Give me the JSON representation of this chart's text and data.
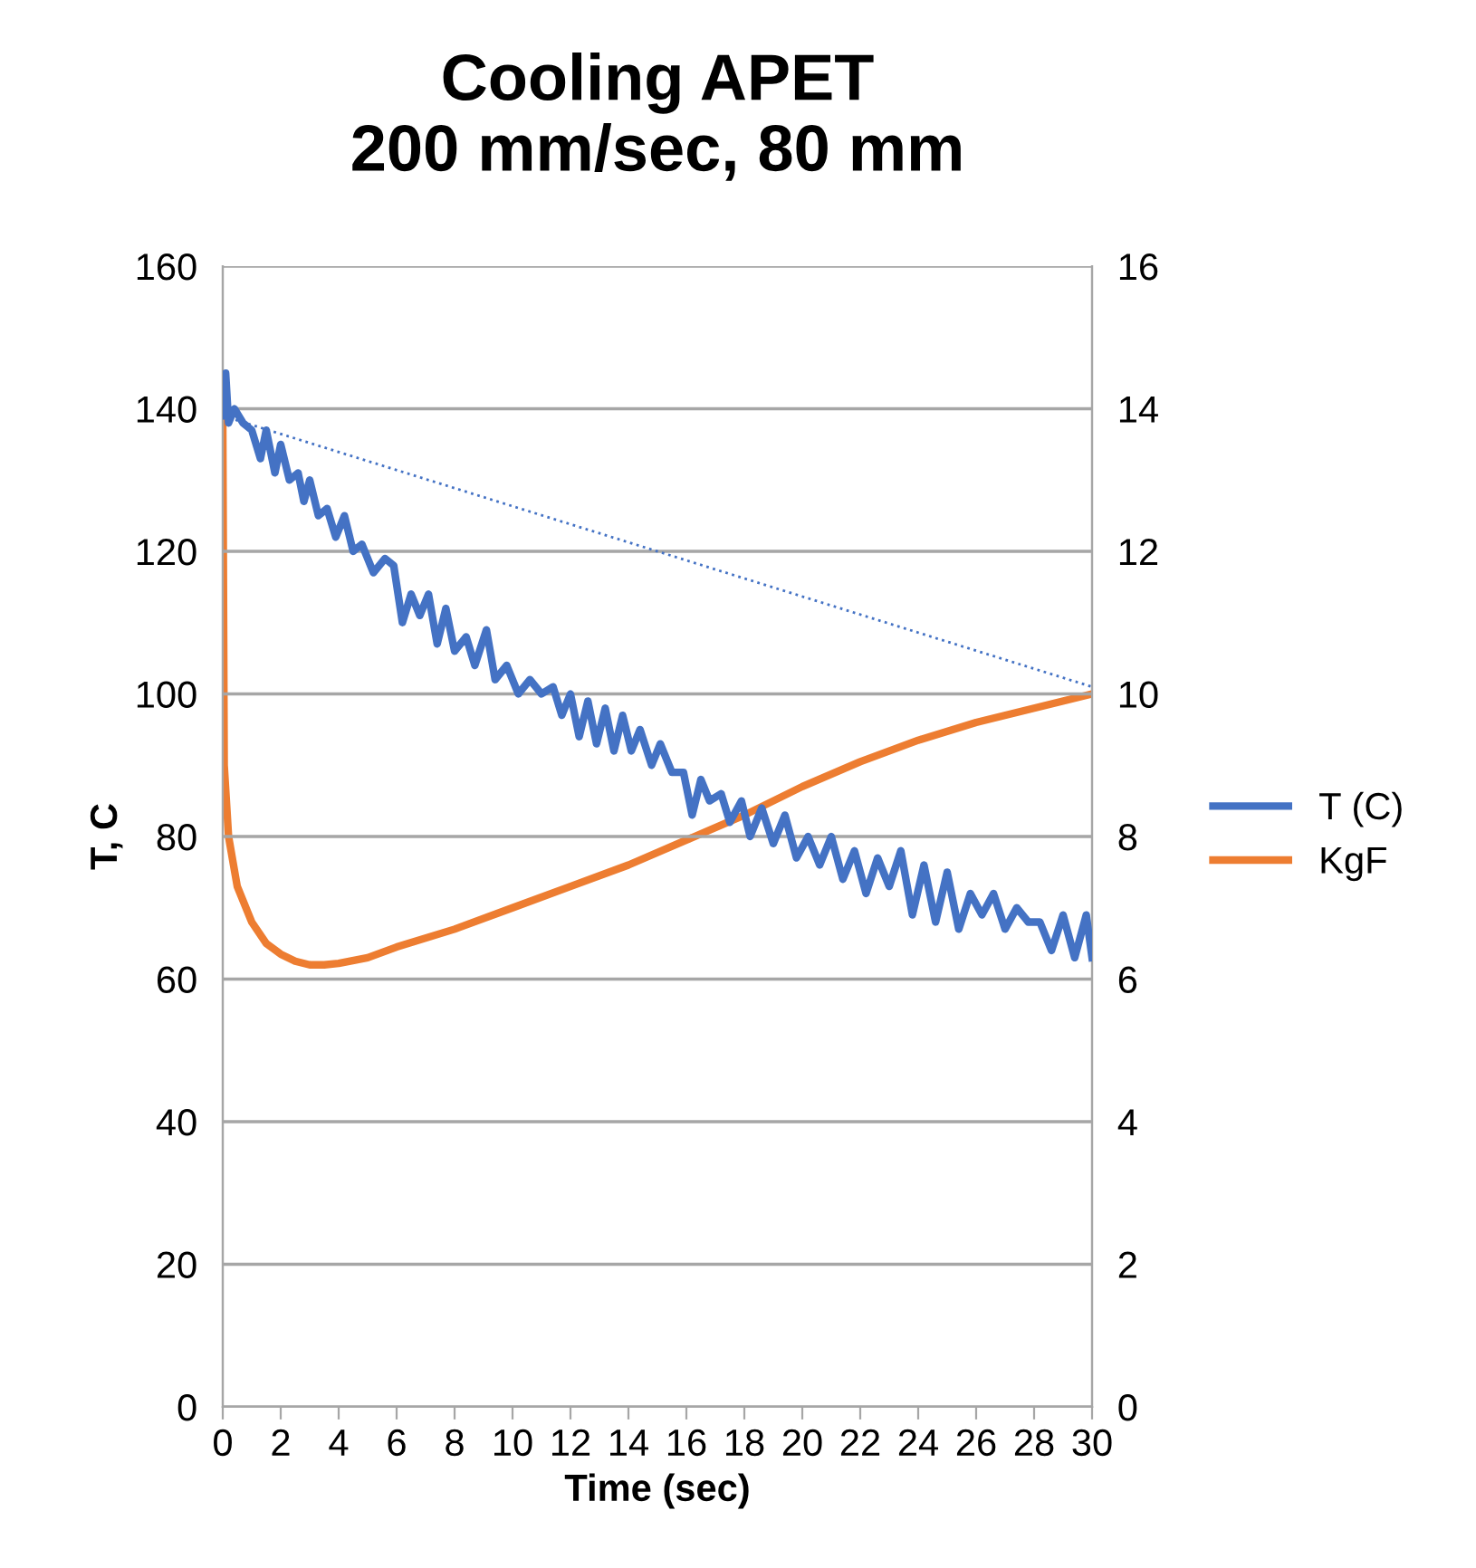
{
  "chart_data": {
    "type": "line",
    "title": "Cooling APET\n200 mm/sec, 80 mm",
    "xlabel": "Time (sec)",
    "ylabel": "T, C",
    "xlim": [
      0,
      30
    ],
    "xticks": [
      0,
      2,
      4,
      6,
      8,
      10,
      12,
      14,
      16,
      18,
      20,
      22,
      24,
      26,
      28,
      30
    ],
    "ylim": [
      0,
      160
    ],
    "yticks": [
      0,
      20,
      40,
      60,
      80,
      100,
      120,
      140,
      160
    ],
    "y2lim": [
      0,
      16
    ],
    "y2ticks": [
      0,
      2,
      4,
      6,
      8,
      10,
      12,
      14,
      16
    ],
    "grid": "y",
    "legend": "right",
    "marker": "none",
    "series": [
      {
        "name": "T (C)",
        "color": "#4472c4",
        "x": [
          0,
          0.1,
          0.2,
          0.4,
          0.7,
          1,
          1.3,
          1.5,
          1.8,
          2,
          2.3,
          2.6,
          2.8,
          3,
          3.3,
          3.6,
          3.9,
          4.2,
          4.5,
          4.8,
          5.2,
          5.6,
          5.9,
          6.2,
          6.5,
          6.8,
          7.1,
          7.4,
          7.7,
          8,
          8.4,
          8.7,
          9.1,
          9.4,
          9.8,
          10.2,
          10.6,
          11,
          11.4,
          11.7,
          12,
          12.3,
          12.6,
          12.9,
          13.2,
          13.5,
          13.8,
          14.1,
          14.4,
          14.8,
          15.1,
          15.5,
          15.9,
          16.2,
          16.5,
          16.8,
          17.2,
          17.5,
          17.9,
          18.2,
          18.6,
          19,
          19.4,
          19.8,
          20.2,
          20.6,
          21,
          21.4,
          21.8,
          22.2,
          22.6,
          23,
          23.4,
          23.8,
          24.2,
          24.6,
          25,
          25.4,
          25.8,
          26.2,
          26.6,
          27,
          27.4,
          27.8,
          28.2,
          28.6,
          29,
          29.4,
          29.8,
          30
        ],
        "values": [
          139,
          145,
          138,
          140,
          138,
          137,
          133,
          137,
          131,
          135,
          130,
          131,
          127,
          130,
          125,
          126,
          122,
          125,
          120,
          121,
          117,
          119,
          118,
          110,
          114,
          111,
          114,
          107,
          112,
          106,
          108,
          104,
          109,
          102,
          104,
          100,
          102,
          100,
          101,
          97,
          100,
          94,
          99,
          93,
          98,
          92,
          97,
          92,
          95,
          90,
          93,
          89,
          89,
          83,
          88,
          85,
          86,
          82,
          85,
          80,
          84,
          79,
          83,
          77,
          80,
          76,
          80,
          74,
          78,
          72,
          77,
          73,
          78,
          69,
          76,
          68,
          75,
          67,
          72,
          69,
          72,
          67,
          70,
          68,
          68,
          64,
          69,
          63,
          69,
          63
        ]
      },
      {
        "name": "KgF",
        "color": "#ed7d31",
        "axis": "y2",
        "x": [
          0,
          0.05,
          0.2,
          0.5,
          1,
          1.5,
          2,
          2.5,
          3,
          3.5,
          4,
          5,
          6,
          8,
          10,
          12,
          14,
          16,
          18,
          20,
          22,
          24,
          26,
          28,
          30
        ],
        "values": [
          13.9,
          9,
          8,
          7.3,
          6.8,
          6.5,
          6.35,
          6.25,
          6.2,
          6.2,
          6.22,
          6.3,
          6.45,
          6.7,
          7.0,
          7.3,
          7.6,
          7.95,
          8.3,
          8.7,
          9.05,
          9.35,
          9.6,
          9.8,
          10.0
        ]
      },
      {
        "color": "#4472c4",
        "line_style": "dotted",
        "x": [
          0,
          30
        ],
        "values": [
          139,
          101
        ]
      }
    ]
  }
}
